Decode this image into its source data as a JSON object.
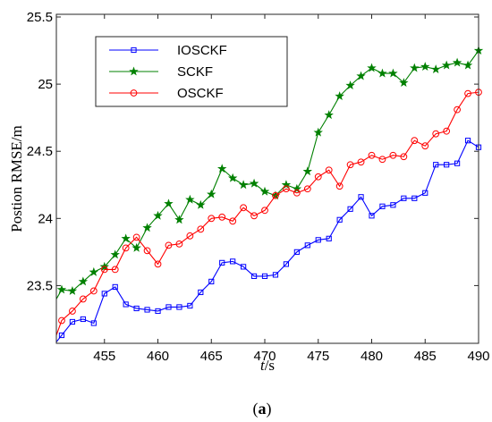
{
  "chart_data": {
    "type": "line",
    "xlabel_italic": "t",
    "xlabel_unit": "/s",
    "ylabel": "Postion RMSE/m",
    "xlim": [
      450.5,
      490
    ],
    "ylim": [
      23.07,
      25.52
    ],
    "xticks": [
      455,
      460,
      465,
      470,
      475,
      480,
      485,
      490
    ],
    "yticks": [
      23.5,
      24,
      24.5,
      25,
      25.5
    ],
    "ytick_labels": [
      "23.5",
      "24",
      "24.5",
      "25",
      "25.5"
    ],
    "grid": false,
    "legend_position": "top-left",
    "caption_open": "(",
    "caption_letter": "a",
    "caption_close": ")",
    "x": [
      450.5,
      451,
      452,
      453,
      454,
      455,
      456,
      457,
      458,
      459,
      460,
      461,
      462,
      463,
      464,
      465,
      466,
      467,
      468,
      469,
      470,
      471,
      472,
      473,
      474,
      475,
      476,
      477,
      478,
      479,
      480,
      481,
      482,
      483,
      484,
      485,
      486,
      487,
      488,
      489,
      490
    ],
    "series": [
      {
        "name": "IOSCKF",
        "color": "#0000ff",
        "marker": "square",
        "values": [
          23.08,
          23.13,
          23.23,
          23.25,
          23.22,
          23.44,
          23.49,
          23.36,
          23.33,
          23.32,
          23.31,
          23.34,
          23.34,
          23.35,
          23.45,
          23.53,
          23.67,
          23.68,
          23.64,
          23.57,
          23.57,
          23.58,
          23.66,
          23.75,
          23.8,
          23.84,
          23.85,
          23.99,
          24.07,
          24.16,
          24.02,
          24.09,
          24.1,
          24.15,
          24.15,
          24.19,
          24.4,
          24.4,
          24.41,
          24.58,
          24.53
        ]
      },
      {
        "name": "SCKF",
        "color": "#008000",
        "marker": "star",
        "values": [
          23.4,
          23.47,
          23.46,
          23.53,
          23.6,
          23.64,
          23.73,
          23.85,
          23.78,
          23.93,
          24.02,
          24.11,
          23.99,
          24.14,
          24.1,
          24.18,
          24.37,
          24.3,
          24.25,
          24.26,
          24.2,
          24.17,
          24.25,
          24.22,
          24.35,
          24.64,
          24.77,
          24.91,
          24.99,
          25.06,
          25.12,
          25.08,
          25.08,
          25.01,
          25.12,
          25.13,
          25.11,
          25.14,
          25.16,
          25.14,
          25.25
        ]
      },
      {
        "name": "OSCKF",
        "color": "#ff0000",
        "marker": "circle",
        "values": [
          23.13,
          23.24,
          23.31,
          23.4,
          23.46,
          23.62,
          23.62,
          23.78,
          23.86,
          23.76,
          23.66,
          23.8,
          23.81,
          23.87,
          23.92,
          24.0,
          24.01,
          23.98,
          24.08,
          24.02,
          24.06,
          24.17,
          24.22,
          24.19,
          24.22,
          24.31,
          24.36,
          24.24,
          24.4,
          24.42,
          24.47,
          24.44,
          24.47,
          24.46,
          24.58,
          24.54,
          24.63,
          24.65,
          24.81,
          24.93,
          24.94
        ]
      }
    ]
  }
}
